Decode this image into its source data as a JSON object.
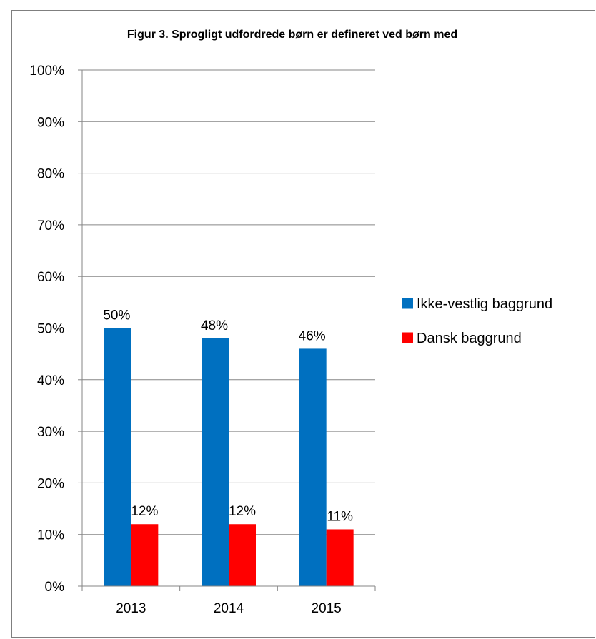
{
  "chart_data": {
    "type": "bar",
    "title": "Figur 3. Sprogligt udfordrede børn er defineret ved børn med",
    "categories": [
      "2013",
      "2014",
      "2015"
    ],
    "series": [
      {
        "name": "Ikke-vestlig baggrund",
        "values": [
          50,
          48,
          46
        ],
        "labels": [
          "50%",
          "48%",
          "46%"
        ],
        "color": "#0070C0"
      },
      {
        "name": "Dansk baggrund",
        "values": [
          12,
          12,
          11
        ],
        "labels": [
          "12%",
          "12%",
          "11%"
        ],
        "color": "#FF0000"
      }
    ],
    "ylim": [
      0,
      100
    ],
    "yticks": [
      "0%",
      "10%",
      "20%",
      "30%",
      "40%",
      "50%",
      "60%",
      "70%",
      "80%",
      "90%",
      "100%"
    ],
    "grid": true,
    "legend_position": "right"
  }
}
